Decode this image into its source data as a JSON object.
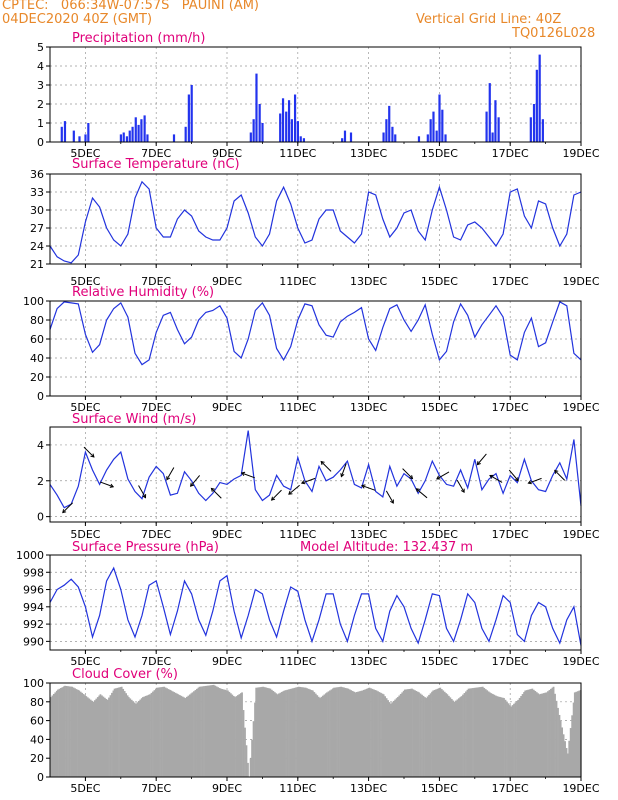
{
  "header": {
    "station": "CPTEC:   066:34W-07:57S   PAUINI (AM)",
    "run": "04DEC2020 40Z (GMT)",
    "grid_note": "Vertical Grid Line: 40Z",
    "model": "TQ0126L028"
  },
  "colors": {
    "header": "#e8882a",
    "title": "#e0007a",
    "line": "#2233dd",
    "bar": "#2233ee",
    "cloud": "#a8a8a8",
    "grid": "#999999"
  },
  "x_axis": {
    "range_days": [
      4.0,
      19.0
    ],
    "ticks": [
      {
        "day": 5,
        "label": "5DEC"
      },
      {
        "day": 7,
        "label": "7DEC"
      },
      {
        "day": 9,
        "label": "9DEC"
      },
      {
        "day": 11,
        "label": "11DEC"
      },
      {
        "day": 13,
        "label": "13DEC"
      },
      {
        "day": 15,
        "label": "15DEC"
      },
      {
        "day": 17,
        "label": "17DEC"
      },
      {
        "day": 19,
        "label": "19DEC"
      }
    ]
  },
  "chart_data": [
    {
      "id": "precip",
      "type": "bar",
      "title": "Precipitation (mm/h)",
      "ylim": [
        0,
        5
      ],
      "yticks": [
        0,
        1,
        2,
        3,
        4,
        5
      ],
      "x": [
        4.33,
        4.42,
        4.67,
        4.83,
        5.0,
        5.08,
        6.0,
        6.08,
        6.17,
        6.25,
        6.33,
        6.42,
        6.5,
        6.58,
        6.67,
        6.75,
        7.5,
        7.83,
        7.92,
        8.0,
        9.67,
        9.75,
        9.83,
        9.92,
        10.0,
        10.5,
        10.58,
        10.67,
        10.75,
        10.83,
        10.92,
        11.0,
        11.08,
        11.17,
        12.25,
        12.33,
        12.5,
        13.42,
        13.5,
        13.58,
        13.67,
        13.75,
        14.42,
        14.67,
        14.75,
        14.83,
        14.92,
        15.0,
        15.08,
        15.17,
        16.33,
        16.42,
        16.5,
        16.58,
        16.67,
        17.58,
        17.67,
        17.75,
        17.83,
        17.92
      ],
      "y": [
        0.8,
        1.1,
        0.6,
        0.3,
        0.4,
        1.0,
        0.4,
        0.5,
        0.3,
        0.6,
        0.8,
        1.3,
        0.9,
        1.2,
        1.4,
        0.4,
        0.4,
        0.8,
        2.5,
        3.0,
        0.5,
        1.2,
        3.6,
        2.0,
        1.0,
        1.5,
        2.3,
        1.6,
        2.2,
        1.2,
        2.5,
        1.1,
        0.3,
        0.2,
        0.2,
        0.6,
        0.5,
        0.5,
        1.2,
        1.9,
        0.8,
        0.4,
        0.3,
        0.4,
        1.2,
        1.6,
        0.6,
        2.5,
        1.7,
        0.4,
        1.6,
        3.1,
        0.5,
        2.2,
        1.3,
        1.3,
        2.0,
        3.8,
        4.6,
        1.2
      ]
    },
    {
      "id": "temp",
      "type": "line",
      "title": "Surface Temperature (nC)",
      "ylim": [
        21,
        36
      ],
      "yticks": [
        21,
        24,
        27,
        30,
        33,
        36
      ],
      "x": [
        4.0,
        4.2,
        4.4,
        4.6,
        4.8,
        5.0,
        5.2,
        5.4,
        5.6,
        5.8,
        6.0,
        6.2,
        6.4,
        6.6,
        6.8,
        7.0,
        7.2,
        7.4,
        7.6,
        7.8,
        8.0,
        8.2,
        8.4,
        8.6,
        8.8,
        9.0,
        9.2,
        9.4,
        9.6,
        9.8,
        10.0,
        10.2,
        10.4,
        10.6,
        10.8,
        11.0,
        11.2,
        11.4,
        11.6,
        11.8,
        12.0,
        12.2,
        12.4,
        12.6,
        12.8,
        13.0,
        13.2,
        13.4,
        13.6,
        13.8,
        14.0,
        14.2,
        14.4,
        14.6,
        14.8,
        15.0,
        15.2,
        15.4,
        15.6,
        15.8,
        16.0,
        16.2,
        16.4,
        16.6,
        16.8,
        17.0,
        17.2,
        17.4,
        17.6,
        17.8,
        18.0,
        18.2,
        18.4,
        18.6,
        18.8,
        19.0
      ],
      "y": [
        24.0,
        22.2,
        21.5,
        21.2,
        22.5,
        28.0,
        32.0,
        30.5,
        27.0,
        25.0,
        24.0,
        26.0,
        32.0,
        34.7,
        33.5,
        27.0,
        25.5,
        25.5,
        28.5,
        30.0,
        29.0,
        26.5,
        25.5,
        25.0,
        25.0,
        27.0,
        31.5,
        32.5,
        29.5,
        25.5,
        24.0,
        26.0,
        31.5,
        33.8,
        31.0,
        27.0,
        24.5,
        25.0,
        28.5,
        30.0,
        30.0,
        26.5,
        25.5,
        24.5,
        26.0,
        33.0,
        32.5,
        28.5,
        25.5,
        27.0,
        29.5,
        30.0,
        26.5,
        25.0,
        30.0,
        33.8,
        30.0,
        25.5,
        25.0,
        27.5,
        28.0,
        27.0,
        25.5,
        24.0,
        26.0,
        33.0,
        33.5,
        29.0,
        27.0,
        31.5,
        31.0,
        27.0,
        24.0,
        26.0,
        32.5,
        33.0
      ]
    },
    {
      "id": "rh",
      "type": "line",
      "title": "Relative Humidity (%)",
      "ylim": [
        0,
        100
      ],
      "yticks": [
        0,
        20,
        40,
        60,
        80,
        100
      ],
      "x": [
        4.0,
        4.2,
        4.4,
        4.6,
        4.8,
        5.0,
        5.2,
        5.4,
        5.6,
        5.8,
        6.0,
        6.2,
        6.4,
        6.6,
        6.8,
        7.0,
        7.2,
        7.4,
        7.6,
        7.8,
        8.0,
        8.2,
        8.4,
        8.6,
        8.8,
        9.0,
        9.2,
        9.4,
        9.6,
        9.8,
        10.0,
        10.2,
        10.4,
        10.6,
        10.8,
        11.0,
        11.2,
        11.4,
        11.6,
        11.8,
        12.0,
        12.2,
        12.4,
        12.6,
        12.8,
        13.0,
        13.2,
        13.4,
        13.6,
        13.8,
        14.0,
        14.2,
        14.4,
        14.6,
        14.8,
        15.0,
        15.2,
        15.4,
        15.6,
        15.8,
        16.0,
        16.2,
        16.4,
        16.6,
        16.8,
        17.0,
        17.2,
        17.4,
        17.6,
        17.8,
        18.0,
        18.2,
        18.4,
        18.6,
        18.8,
        19.0
      ],
      "y": [
        70.0,
        92.0,
        99.0,
        98.0,
        97.0,
        65.0,
        46.0,
        54.0,
        80.0,
        92.0,
        98.0,
        83.0,
        45.0,
        33.0,
        38.0,
        67.0,
        85.0,
        88.0,
        70.0,
        55.0,
        62.0,
        80.0,
        88.0,
        90.0,
        95.0,
        82.0,
        47.0,
        40.0,
        60.0,
        90.0,
        98.0,
        85.0,
        50.0,
        38.0,
        52.0,
        80.0,
        97.0,
        95.0,
        75.0,
        64.0,
        62.0,
        78.0,
        84.0,
        88.0,
        93.0,
        60.0,
        48.0,
        72.0,
        92.0,
        96.0,
        80.0,
        68.0,
        80.0,
        96.0,
        65.0,
        38.0,
        47.0,
        78.0,
        97.0,
        85.0,
        62.0,
        75.0,
        85.0,
        95.0,
        83.0,
        43.0,
        38.0,
        67.0,
        82.0,
        52.0,
        56.0,
        78.0,
        99.0,
        95.0,
        45.0,
        38.0
      ]
    },
    {
      "id": "wind",
      "type": "line",
      "title": "Surface Wind (m/s)",
      "ylim": [
        -0.3,
        5.0
      ],
      "yticks": [
        0,
        2,
        4
      ],
      "x": [
        4.0,
        4.2,
        4.4,
        4.6,
        4.8,
        5.0,
        5.2,
        5.4,
        5.6,
        5.8,
        6.0,
        6.2,
        6.4,
        6.6,
        6.8,
        7.0,
        7.2,
        7.4,
        7.6,
        7.8,
        8.0,
        8.2,
        8.4,
        8.6,
        8.8,
        9.0,
        9.2,
        9.4,
        9.6,
        9.8,
        10.0,
        10.2,
        10.4,
        10.6,
        10.8,
        11.0,
        11.2,
        11.4,
        11.6,
        11.8,
        12.0,
        12.2,
        12.4,
        12.6,
        12.8,
        13.0,
        13.2,
        13.4,
        13.6,
        13.8,
        14.0,
        14.2,
        14.4,
        14.6,
        14.8,
        15.0,
        15.2,
        15.4,
        15.6,
        15.8,
        16.0,
        16.2,
        16.4,
        16.6,
        16.8,
        17.0,
        17.2,
        17.4,
        17.6,
        17.8,
        18.0,
        18.2,
        18.4,
        18.6,
        18.8,
        19.0
      ],
      "y": [
        1.8,
        1.2,
        0.5,
        0.7,
        1.7,
        3.6,
        2.6,
        1.8,
        2.6,
        3.2,
        3.6,
        2.1,
        1.4,
        1.0,
        2.2,
        2.8,
        2.4,
        1.2,
        1.3,
        2.5,
        2.0,
        1.3,
        0.9,
        1.3,
        1.9,
        1.8,
        2.1,
        2.3,
        4.8,
        1.5,
        0.9,
        1.2,
        2.3,
        1.7,
        1.5,
        3.3,
        2.0,
        1.4,
        2.8,
        2.0,
        2.2,
        2.6,
        3.1,
        1.8,
        1.6,
        2.9,
        1.4,
        1.1,
        2.8,
        1.7,
        2.4,
        2.1,
        1.3,
        2.0,
        3.1,
        2.3,
        1.8,
        1.7,
        2.6,
        1.6,
        3.2,
        1.5,
        2.1,
        2.4,
        1.3,
        2.3,
        1.9,
        3.2,
        2.0,
        1.5,
        1.4,
        2.3,
        3.0,
        2.1,
        4.3,
        0.6
      ],
      "arrows": [
        {
          "x": 4.5,
          "dir": 225
        },
        {
          "x": 5.1,
          "dir": 315
        },
        {
          "x": 5.6,
          "dir": 340
        },
        {
          "x": 6.6,
          "dir": 300
        },
        {
          "x": 7.4,
          "dir": 240
        },
        {
          "x": 8.1,
          "dir": 230
        },
        {
          "x": 8.7,
          "dir": 135
        },
        {
          "x": 9.6,
          "dir": 160
        },
        {
          "x": 10.4,
          "dir": 225
        },
        {
          "x": 10.9,
          "dir": 220
        },
        {
          "x": 11.3,
          "dir": 200
        },
        {
          "x": 11.8,
          "dir": 135
        },
        {
          "x": 12.3,
          "dir": 250
        },
        {
          "x": 13.0,
          "dir": 160
        },
        {
          "x": 13.6,
          "dir": 300
        },
        {
          "x": 14.1,
          "dir": 315
        },
        {
          "x": 14.5,
          "dir": 140
        },
        {
          "x": 15.1,
          "dir": 210
        },
        {
          "x": 15.6,
          "dir": 300
        },
        {
          "x": 16.2,
          "dir": 230
        },
        {
          "x": 16.6,
          "dir": 150
        },
        {
          "x": 17.1,
          "dir": 310
        },
        {
          "x": 17.7,
          "dir": 200
        },
        {
          "x": 18.4,
          "dir": 135
        }
      ]
    },
    {
      "id": "pres",
      "type": "line",
      "title": "Surface Pressure (hPa)",
      "note": "Model Altitude: 132.437  m",
      "ylim": [
        989,
        1000
      ],
      "yticks": [
        990,
        992,
        994,
        996,
        998,
        1000
      ],
      "x": [
        4.0,
        4.2,
        4.4,
        4.6,
        4.8,
        5.0,
        5.2,
        5.4,
        5.6,
        5.8,
        6.0,
        6.2,
        6.4,
        6.6,
        6.8,
        7.0,
        7.2,
        7.4,
        7.6,
        7.8,
        8.0,
        8.2,
        8.4,
        8.6,
        8.8,
        9.0,
        9.2,
        9.4,
        9.6,
        9.8,
        10.0,
        10.2,
        10.4,
        10.6,
        10.8,
        11.0,
        11.2,
        11.4,
        11.6,
        11.8,
        12.0,
        12.2,
        12.4,
        12.6,
        12.8,
        13.0,
        13.2,
        13.4,
        13.6,
        13.8,
        14.0,
        14.2,
        14.4,
        14.6,
        14.8,
        15.0,
        15.2,
        15.4,
        15.6,
        15.8,
        16.0,
        16.2,
        16.4,
        16.6,
        16.8,
        17.0,
        17.2,
        17.4,
        17.6,
        17.8,
        18.0,
        18.2,
        18.4,
        18.6,
        18.8,
        19.0
      ],
      "y": [
        994.5,
        996.0,
        996.5,
        997.2,
        996.3,
        994.0,
        990.5,
        993.0,
        997.0,
        998.5,
        996.0,
        992.5,
        990.5,
        993.0,
        996.5,
        997.0,
        994.0,
        990.8,
        993.5,
        997.0,
        995.5,
        992.5,
        990.7,
        993.5,
        997.0,
        997.6,
        993.5,
        990.4,
        993.0,
        996.0,
        995.5,
        992.5,
        990.5,
        993.5,
        996.3,
        995.8,
        992.5,
        990.0,
        992.5,
        995.5,
        995.5,
        992.0,
        990.0,
        993.0,
        995.5,
        995.5,
        991.5,
        990.0,
        993.5,
        995.3,
        994.0,
        991.5,
        989.8,
        992.5,
        995.5,
        995.3,
        991.5,
        990.0,
        992.5,
        995.5,
        994.5,
        991.5,
        990.0,
        992.5,
        995.3,
        994.5,
        990.8,
        990.0,
        993.0,
        994.5,
        994.0,
        991.5,
        989.8,
        992.5,
        994.0,
        989.5
      ]
    },
    {
      "id": "cloud",
      "type": "area",
      "title": "Cloud Cover (%)",
      "ylim": [
        0,
        100
      ],
      "yticks": [
        0,
        20,
        40,
        60,
        80,
        100
      ],
      "x": [
        4.0,
        4.2,
        4.4,
        4.6,
        4.8,
        5.0,
        5.2,
        5.4,
        5.6,
        5.8,
        6.0,
        6.2,
        6.4,
        6.6,
        6.8,
        7.0,
        7.2,
        7.4,
        7.6,
        7.8,
        8.0,
        8.2,
        8.4,
        8.6,
        8.8,
        9.0,
        9.2,
        9.4,
        9.6,
        9.8,
        10.0,
        10.2,
        10.4,
        10.6,
        10.8,
        11.0,
        11.2,
        11.4,
        11.6,
        11.8,
        12.0,
        12.2,
        12.4,
        12.6,
        12.8,
        13.0,
        13.2,
        13.4,
        13.6,
        13.8,
        14.0,
        14.2,
        14.4,
        14.6,
        14.8,
        15.0,
        15.2,
        15.4,
        15.6,
        15.8,
        16.0,
        16.2,
        16.4,
        16.6,
        16.8,
        17.0,
        17.2,
        17.4,
        17.6,
        17.8,
        18.0,
        18.2,
        18.4,
        18.6,
        18.8,
        19.0
      ],
      "y": [
        85,
        93,
        97,
        96,
        92,
        86,
        80,
        88,
        82,
        94,
        96,
        85,
        78,
        85,
        88,
        95,
        96,
        92,
        88,
        84,
        90,
        96,
        97,
        98,
        94,
        92,
        85,
        90,
        0,
        95,
        96,
        94,
        88,
        92,
        94,
        96,
        95,
        92,
        84,
        90,
        95,
        96,
        94,
        90,
        92,
        95,
        92,
        88,
        78,
        85,
        93,
        94,
        90,
        84,
        92,
        95,
        88,
        80,
        86,
        94,
        95,
        96,
        90,
        86,
        84,
        75,
        82,
        92,
        94,
        88,
        90,
        96,
        60,
        25,
        90,
        93
      ]
    }
  ]
}
